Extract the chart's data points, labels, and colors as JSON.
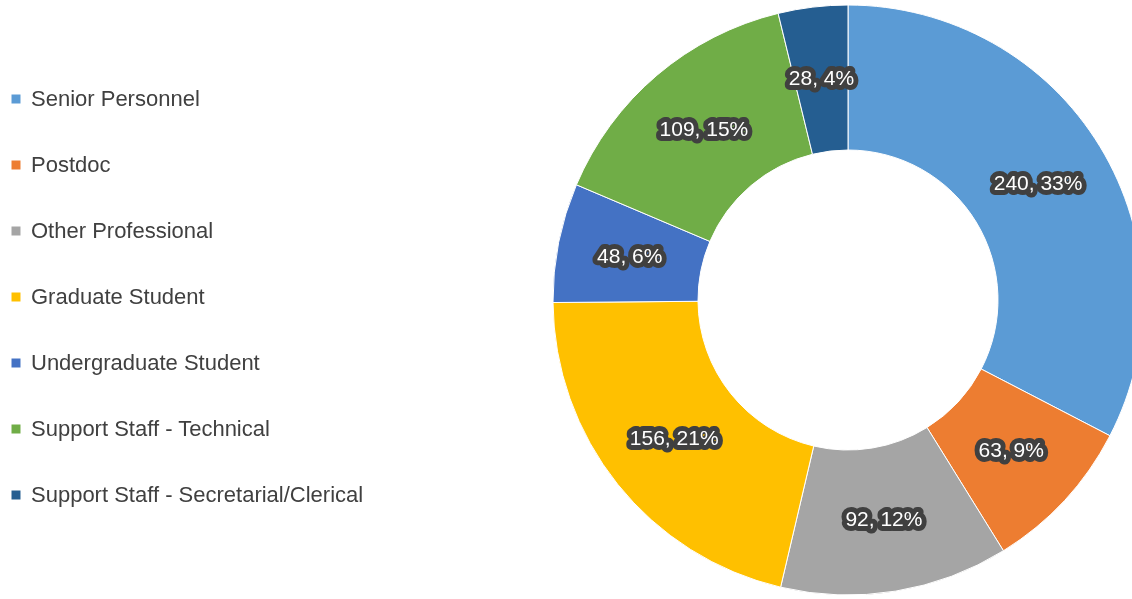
{
  "chart_data": {
    "type": "donut",
    "categories": [
      "Senior Personnel",
      "Postdoc",
      "Other Professional",
      "Graduate Student",
      "Undergraduate Student",
      "Support Staff - Technical",
      "Support Staff - Secretarial/Clerical"
    ],
    "values": [
      240,
      63,
      92,
      156,
      48,
      109,
      28
    ],
    "colors": [
      "#5b9bd5",
      "#ed7d31",
      "#a5a5a5",
      "#ffc000",
      "#4472c4",
      "#70ad47",
      "#255e91"
    ],
    "value_labels": [
      "240, 33%",
      "63, 9%",
      "92, 12%",
      "156, 21%",
      "48, 6%",
      "109, 15%",
      "28, 4%"
    ],
    "legend": "left"
  }
}
